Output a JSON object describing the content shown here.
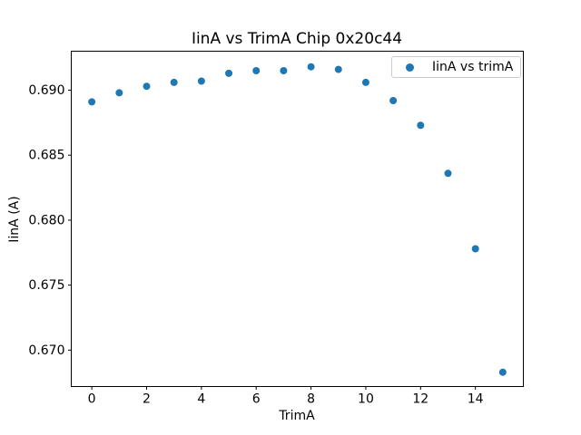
{
  "chart_data": {
    "type": "scatter",
    "title": "IinA vs TrimA Chip 0x20c44",
    "xlabel": "TrimA",
    "ylabel": "IinA (A)",
    "legend_entries": [
      "IinA vs trimA"
    ],
    "legend_position": "upper right",
    "marker_color": "#1f77b4",
    "background_color": "#ffffff",
    "grid": false,
    "x": [
      0,
      1,
      2,
      3,
      4,
      5,
      6,
      7,
      8,
      9,
      10,
      11,
      12,
      13,
      14,
      15
    ],
    "y": [
      0.6891,
      0.6898,
      0.6903,
      0.6906,
      0.6907,
      0.6913,
      0.6915,
      0.6915,
      0.6918,
      0.6916,
      0.6906,
      0.6892,
      0.6873,
      0.6836,
      0.6778,
      0.6683
    ],
    "xticks": [
      0,
      2,
      4,
      6,
      8,
      10,
      12,
      14
    ],
    "yticks": [
      0.67,
      0.675,
      0.68,
      0.685,
      0.69
    ],
    "xlim": [
      -0.75,
      15.75
    ],
    "ylim": [
      0.6672,
      0.693
    ]
  }
}
